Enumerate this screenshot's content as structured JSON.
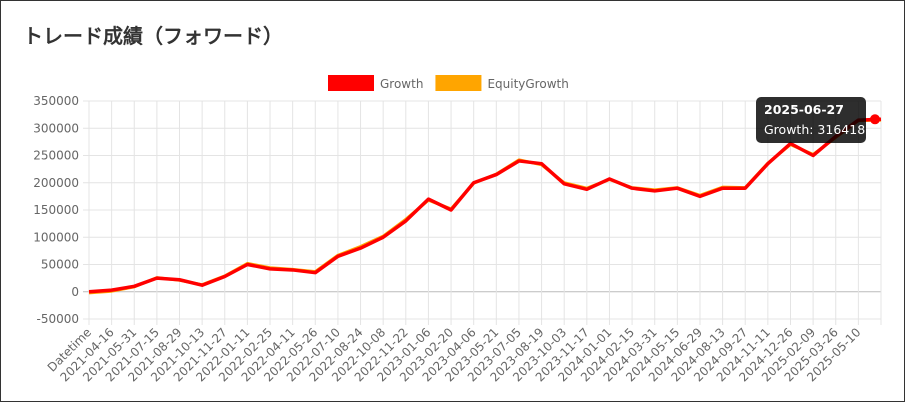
{
  "chart_data": {
    "type": "line",
    "title": "トレード成績（フォワード）",
    "categories": [
      "Datetime",
      "2021-04-16",
      "2021-05-31",
      "2021-07-15",
      "2021-08-29",
      "2021-10-13",
      "2021-11-27",
      "2022-01-11",
      "2022-02-25",
      "2022-04-11",
      "2022-05-26",
      "2022-07-10",
      "2022-08-24",
      "2022-10-08",
      "2022-11-22",
      "2023-01-06",
      "2023-02-20",
      "2023-04-06",
      "2023-05-21",
      "2023-07-05",
      "2023-08-19",
      "2023-10-03",
      "2023-11-17",
      "2024-01-01",
      "2024-02-15",
      "2024-03-31",
      "2024-05-15",
      "2024-06-29",
      "2024-08-13",
      "2024-09-27",
      "2024-11-11",
      "2024-12-26",
      "2025-02-09",
      "2025-03-26",
      "2025-05-10",
      null
    ],
    "series": [
      {
        "name": "Growth",
        "color": "#ff0000",
        "values": [
          0,
          3000,
          10000,
          25000,
          22000,
          12000,
          28000,
          50000,
          42000,
          40000,
          35000,
          65000,
          80000,
          100000,
          130000,
          170000,
          150000,
          200000,
          215000,
          240000,
          235000,
          198000,
          188000,
          207000,
          190000,
          185000,
          190000,
          175000,
          190000,
          190000,
          235000,
          272000,
          250000,
          285000,
          315000,
          316418
        ]
      },
      {
        "name": "EquityGrowth",
        "color": "#ffa500",
        "values": [
          -2000,
          1000,
          9000,
          26000,
          21000,
          13000,
          29000,
          52000,
          44000,
          41000,
          37000,
          67000,
          83000,
          102000,
          133000,
          168000,
          152000,
          199000,
          216000,
          242000,
          233000,
          200000,
          190000,
          206000,
          191000,
          187000,
          191000,
          177000,
          192000,
          191000,
          236000,
          270000,
          252000,
          283000,
          314000,
          315000
        ]
      }
    ],
    "ylim": [
      -50000,
      350000
    ],
    "yticks": [
      -50000,
      0,
      50000,
      100000,
      150000,
      200000,
      250000,
      300000,
      350000
    ],
    "grid": true,
    "legend": "top",
    "tooltip": {
      "title": "2025-06-27",
      "body": "Growth: 316418"
    }
  }
}
